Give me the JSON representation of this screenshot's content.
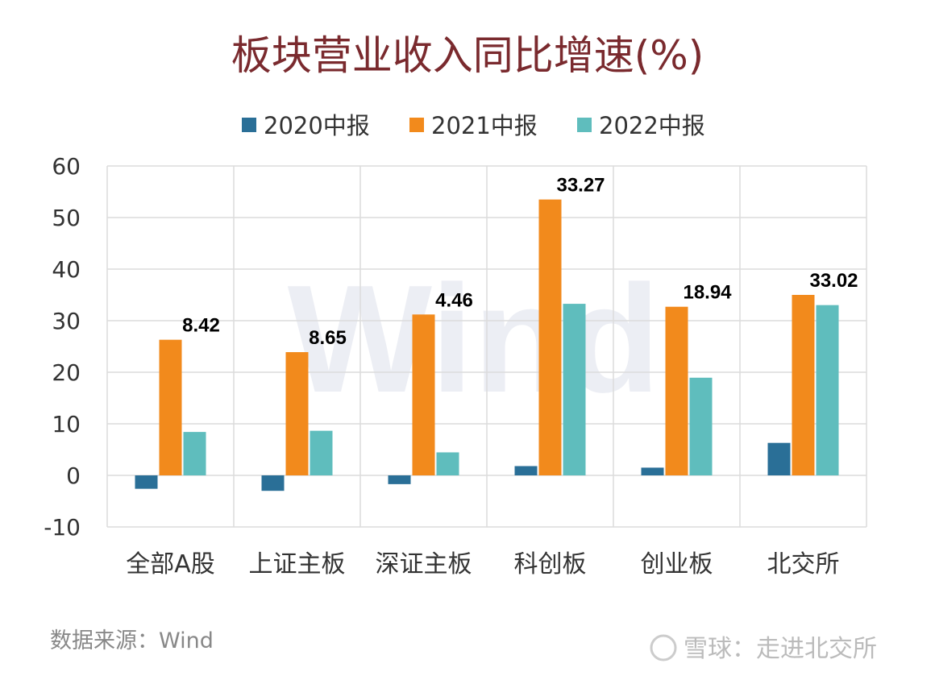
{
  "chart_data": {
    "type": "bar",
    "title": "板块营业收入同比增速(%)",
    "categories": [
      "全部A股",
      "上证主板",
      "深证主板",
      "科创板",
      "创业板",
      "北交所"
    ],
    "series": [
      {
        "name": "2020中报",
        "color": "#2a6f97",
        "values": [
          -2.6,
          -3.0,
          -1.7,
          1.8,
          1.5,
          6.3
        ]
      },
      {
        "name": "2021中报",
        "color": "#f28a1c",
        "values": [
          26.3,
          23.9,
          31.2,
          53.5,
          32.7,
          35.0
        ]
      },
      {
        "name": "2022中报",
        "color": "#5fbdbd",
        "values": [
          8.42,
          8.65,
          4.46,
          33.27,
          18.94,
          33.02
        ]
      }
    ],
    "data_labels": [
      "8.42",
      "8.65",
      "4.46",
      "33.27",
      "18.94",
      "33.02"
    ],
    "yticks": [
      -10,
      0,
      10,
      20,
      30,
      40,
      50,
      60
    ],
    "ylim": [
      -10,
      60
    ],
    "xlabel": "",
    "ylabel": "",
    "grid": true,
    "legend_position": "top"
  },
  "watermark": "Wind",
  "source": "数据来源：Wind",
  "footer": "雪球：走进北交所"
}
